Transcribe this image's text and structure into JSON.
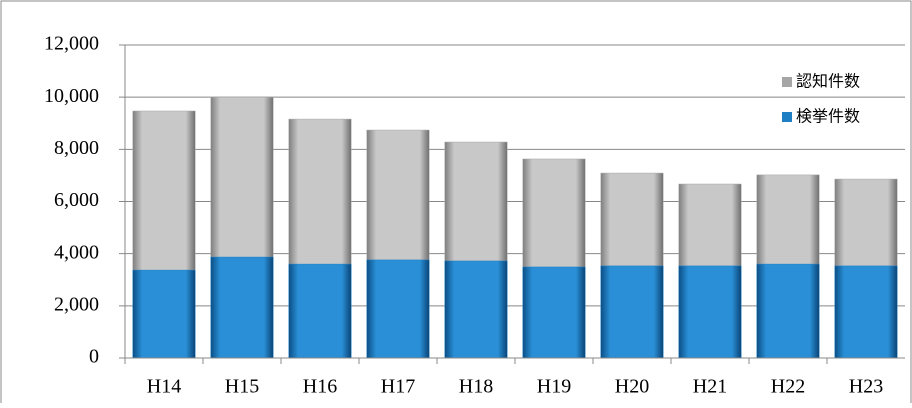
{
  "chart_data": {
    "type": "bar",
    "categories": [
      "H14",
      "H15",
      "H16",
      "H17",
      "H18",
      "H19",
      "H20",
      "H21",
      "H22",
      "H23"
    ],
    "series": [
      {
        "name": "認知件数",
        "color": "#a6a6a6",
        "values": [
          9470,
          10000,
          9160,
          8740,
          8280,
          7630,
          7090,
          6670,
          7020,
          6860
        ]
      },
      {
        "name": "検挙件数",
        "color": "#1f7fc4",
        "values": [
          3370,
          3870,
          3600,
          3760,
          3720,
          3490,
          3530,
          3530,
          3600,
          3530
        ]
      }
    ],
    "ylim": [
      0,
      12000
    ],
    "yticks": [
      0,
      {
        "value": 2000,
        "label": "2,000"
      },
      {
        "value": 4000,
        "label": "4,000"
      },
      {
        "value": 6000,
        "label": "6,000"
      },
      {
        "value": 8000,
        "label": "8,000"
      },
      {
        "value": 10000,
        "label": "10,000"
      },
      {
        "value": 12000,
        "label": "12,000"
      }
    ],
    "grid": true
  }
}
